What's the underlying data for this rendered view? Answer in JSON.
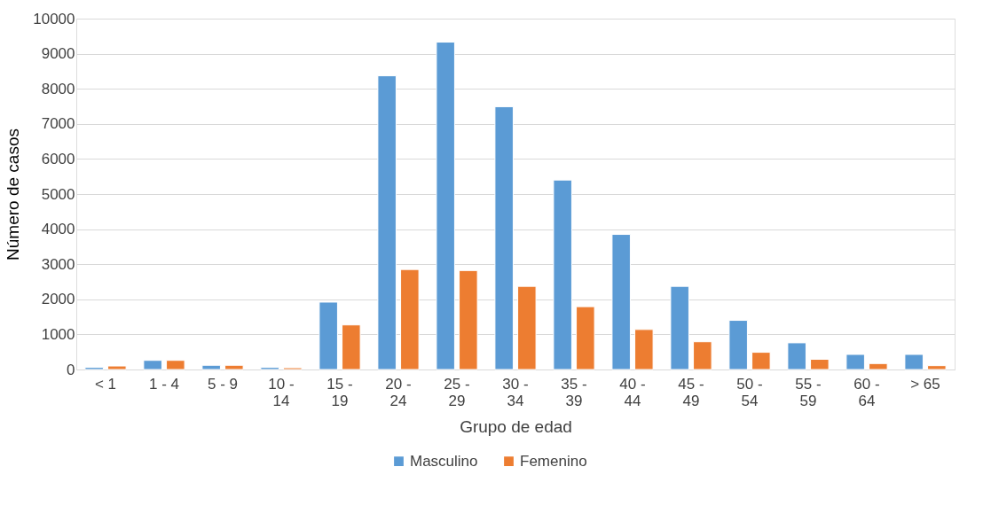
{
  "chart_data": {
    "type": "bar",
    "xlabel": "Grupo de edad",
    "ylabel": "Número de casos",
    "categories": [
      "< 1",
      "1 - 4",
      "5 - 9",
      "10 - 14",
      "15 - 19",
      "20 - 24",
      "25 - 29",
      "30 - 34",
      "35 - 39",
      "40 - 44",
      "45 - 49",
      "50 - 54",
      "55 - 59",
      "60 - 64",
      "> 65"
    ],
    "series": [
      {
        "name": "Masculino",
        "color": "#5b9bd5",
        "values": [
          60,
          260,
          120,
          60,
          1920,
          8370,
          9330,
          7490,
          5400,
          3850,
          2370,
          1400,
          760,
          430,
          430
        ]
      },
      {
        "name": "Femenino",
        "color": "#ed7d31",
        "values": [
          100,
          260,
          120,
          50,
          1270,
          2850,
          2820,
          2370,
          1790,
          1140,
          790,
          490,
          290,
          170,
          110
        ]
      }
    ],
    "ylim": [
      0,
      10000
    ],
    "yticks": [
      0,
      1000,
      2000,
      3000,
      4000,
      5000,
      6000,
      7000,
      8000,
      9000,
      10000
    ],
    "grid": "y",
    "legend": "bottom"
  }
}
